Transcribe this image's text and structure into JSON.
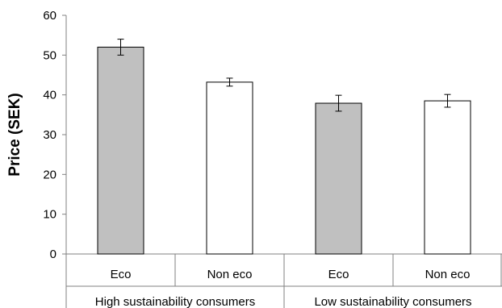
{
  "chart_data": {
    "type": "bar",
    "ylabel": "Price (SEK)",
    "ylim": [
      0,
      60
    ],
    "yticks": [
      0,
      10,
      20,
      30,
      40,
      50,
      60
    ],
    "grid": false,
    "groups": [
      "High sustainability consumers",
      "Low sustainability consumers"
    ],
    "bars": [
      {
        "group": "High sustainability consumers",
        "category": "Eco",
        "value": 52,
        "error": 2.0,
        "fill": "#c0c0c0"
      },
      {
        "group": "High sustainability consumers",
        "category": "Non eco",
        "value": 43.2,
        "error": 1.0,
        "fill": "#ffffff"
      },
      {
        "group": "Low sustainability consumers",
        "category": "Eco",
        "value": 37.9,
        "error": 2.0,
        "fill": "#c0c0c0"
      },
      {
        "group": "Low sustainability consumers",
        "category": "Non eco",
        "value": 38.5,
        "error": 1.6,
        "fill": "#ffffff"
      }
    ]
  }
}
